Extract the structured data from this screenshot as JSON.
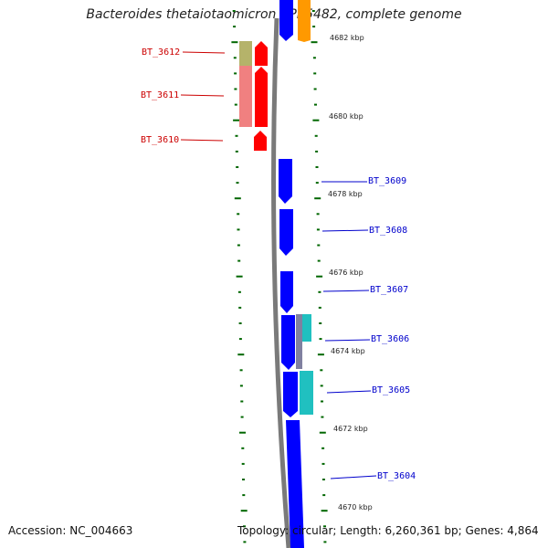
{
  "header": {
    "title": "Bacteroides thetaiotaomicron VPI-5482, complete genome"
  },
  "footer": {
    "accession": "Accession: NC_004663",
    "topology": "Topology: circular; Length: 6,260,361 bp; Genes: 4,864"
  },
  "colors": {
    "forward_gene": "#ff0000",
    "reverse_gene": "#0000ff",
    "label_forward": "#cc0000",
    "label_reverse": "#0000cc",
    "backbone": "#7a7a7a",
    "tick": "#006600",
    "pale_red": "#f08080",
    "olive": "#b5b36a",
    "cyan": "#20c0c0",
    "gray_purple": "#8080a0",
    "orange": "#ff9900"
  },
  "kbp_labels": [
    {
      "text": "4682 kbp"
    },
    {
      "text": "4680 kbp"
    },
    {
      "text": "4678 kbp"
    },
    {
      "text": "4676 kbp"
    },
    {
      "text": "4674 kbp"
    },
    {
      "text": "4672 kbp"
    },
    {
      "text": "4670 kbp"
    }
  ],
  "genes_forward": [
    {
      "label": "BT_3612"
    },
    {
      "label": "BT_3611"
    },
    {
      "label": "BT_3610"
    }
  ],
  "genes_reverse": [
    {
      "label": "BT_3609"
    },
    {
      "label": "BT_3608"
    },
    {
      "label": "BT_3607"
    },
    {
      "label": "BT_3606"
    },
    {
      "label": "BT_3605"
    },
    {
      "label": "BT_3604"
    }
  ]
}
